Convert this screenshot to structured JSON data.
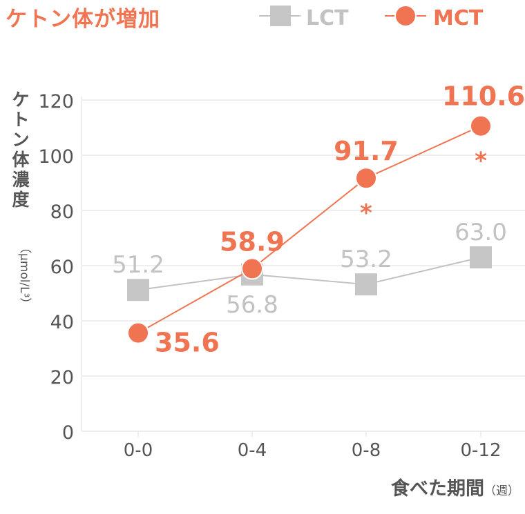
{
  "title": "ケトン体が増加",
  "legend": {
    "lct": "LCT",
    "mct": "MCT"
  },
  "axes": {
    "ylabel": "ケトン体濃度",
    "yunit": "（μmol/L³）",
    "xlabel": "食べた期間",
    "xunit": "（週）"
  },
  "colors": {
    "mct": "#f07451",
    "lct": "#c2c2c2",
    "axis_text": "#555555",
    "grid": "#eeeeee"
  },
  "significance_mark": "*",
  "chart_data": {
    "type": "line",
    "categories": [
      "0-0",
      "0-4",
      "0-8",
      "0-12"
    ],
    "series": [
      {
        "name": "LCT",
        "values": [
          51.2,
          56.8,
          53.2,
          63.0
        ],
        "labels": [
          "51.2",
          "56.8",
          "53.2",
          "63.0"
        ],
        "marker": "square"
      },
      {
        "name": "MCT",
        "values": [
          35.6,
          58.9,
          91.7,
          110.6
        ],
        "labels": [
          "35.6",
          "58.9",
          "91.7",
          "110.6"
        ],
        "marker": "circle",
        "significant": [
          false,
          false,
          true,
          true
        ]
      }
    ],
    "ylim": [
      0,
      120
    ],
    "yticks": [
      "0",
      "20",
      "40",
      "60",
      "80",
      "100",
      "120"
    ],
    "grid": true,
    "legend_position": "top-right"
  }
}
